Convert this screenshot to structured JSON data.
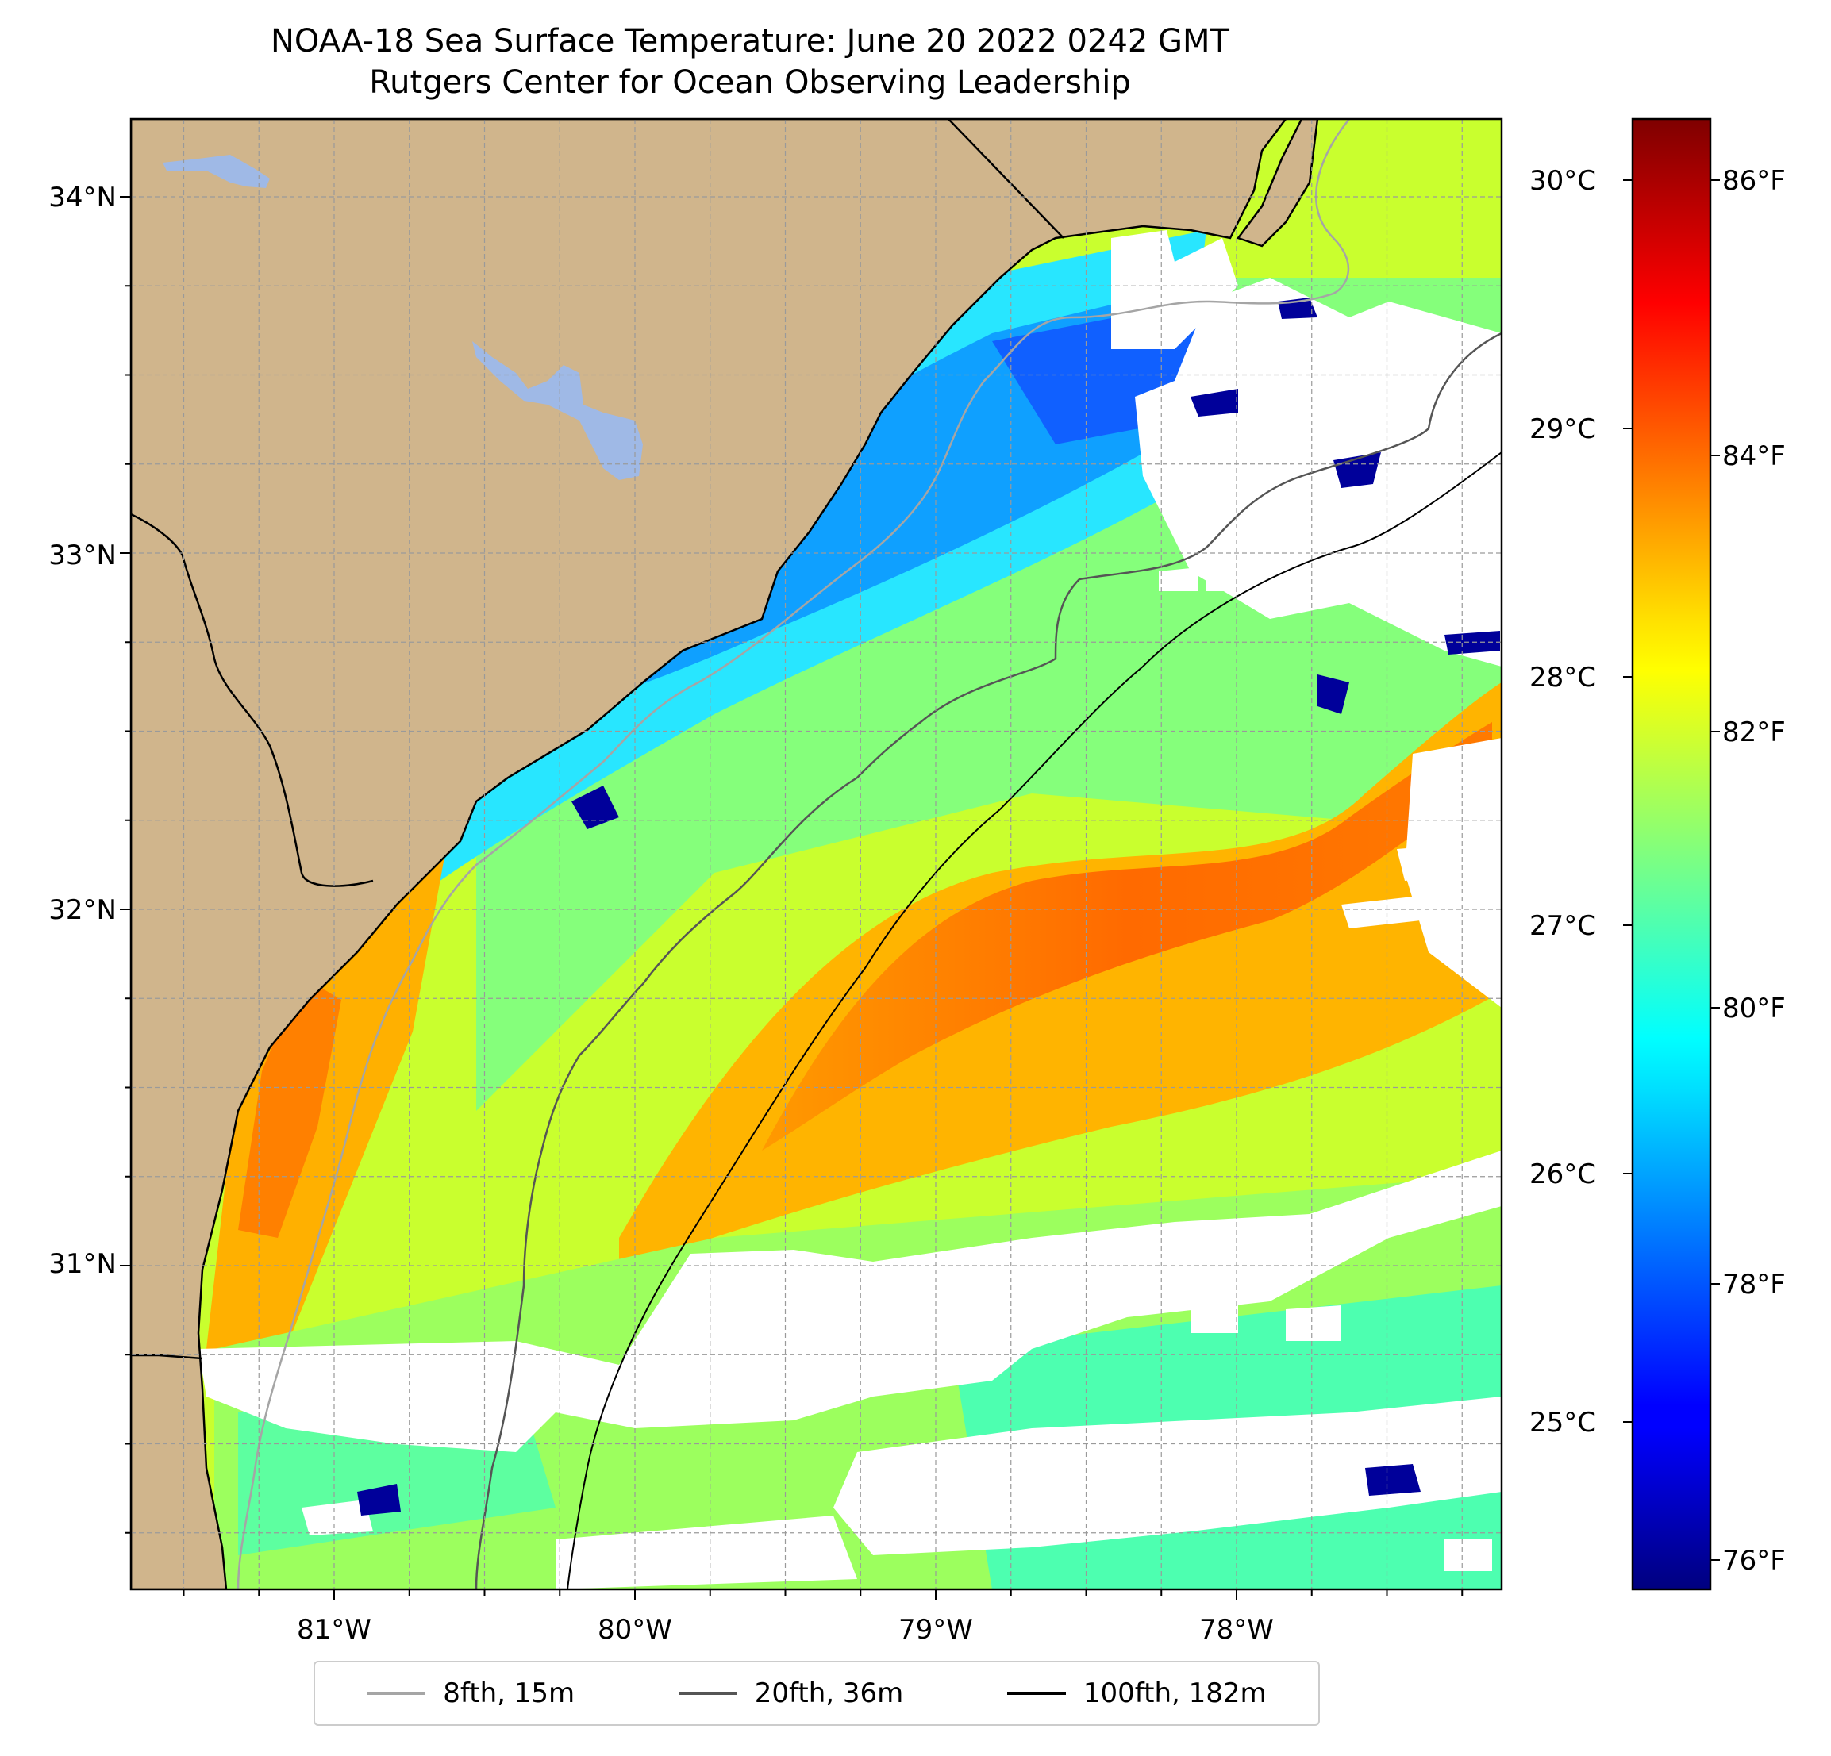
{
  "title": "NOAA-18 Sea Surface Temperature: June 20 2022 0242 GMT",
  "subtitle": "Rutgers Center for Ocean Observing Leadership",
  "map": {
    "lon_range": [
      -81.68,
      -77.12
    ],
    "lat_range": [
      30.09,
      34.22
    ],
    "lon_ticks": [
      "81°W",
      "80°W",
      "79°W",
      "78°W"
    ],
    "lat_ticks": [
      "34°N",
      "33°N",
      "32°N",
      "31°N"
    ],
    "land_color": "#d0b58c",
    "lake_color": "#9fb9e6",
    "no_data_color": "#ffffff",
    "grid": true
  },
  "colorbar": {
    "colormap": "jet",
    "celsius_ticks": [
      "30°C",
      "29°C",
      "28°C",
      "27°C",
      "26°C",
      "25°C"
    ],
    "fahrenheit_ticks": [
      "86°F",
      "84°F",
      "82°F",
      "80°F",
      "78°F",
      "76°F"
    ],
    "range_f": [
      75.6,
      86.9
    ]
  },
  "legend": [
    {
      "label": "8fth, 15m",
      "color": "#a5a5a5"
    },
    {
      "label": "20fth, 36m",
      "color": "#555555"
    },
    {
      "label": "100fth, 182m",
      "color": "#000000"
    }
  ]
}
